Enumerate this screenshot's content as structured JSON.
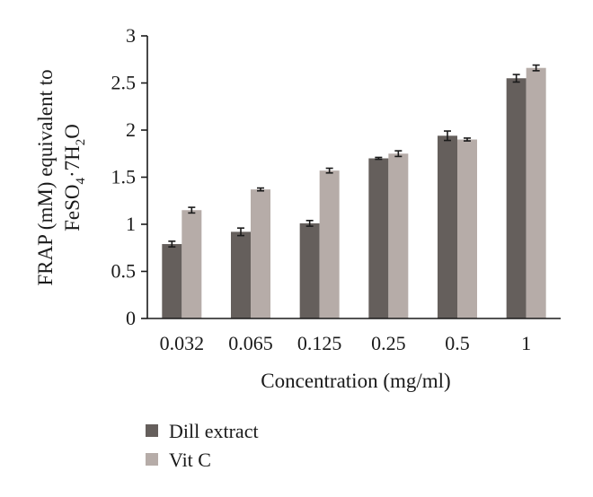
{
  "chart_data": {
    "type": "bar",
    "title": "",
    "xlabel": "Concentration (mg/ml)",
    "ylabel_line1": "FRAP (mM) equivalent to",
    "ylabel_line2": {
      "a": "FeSO",
      "sub1": "4",
      "b": "·7H",
      "sub2": "2",
      "c": "O"
    },
    "categories": [
      "0.032",
      "0.065",
      "0.125",
      "0.25",
      "0.5",
      "1"
    ],
    "ylim": [
      0,
      3
    ],
    "yticks": [
      0,
      0.5,
      1,
      1.5,
      2,
      2.5,
      3
    ],
    "ytick_labels": [
      "0",
      "0.5",
      "1",
      "1.5",
      "2",
      "2.5",
      "3"
    ],
    "grid": false,
    "legend_position": "bottom-left",
    "series": [
      {
        "name": "Dill extract",
        "color": "#655f5c",
        "values": [
          0.79,
          0.92,
          1.01,
          1.7,
          1.94,
          2.55
        ],
        "errors": [
          0.03,
          0.04,
          0.03,
          0.01,
          0.05,
          0.04
        ]
      },
      {
        "name": "Vit C",
        "color": "#b6aca8",
        "values": [
          1.15,
          1.37,
          1.57,
          1.75,
          1.9,
          2.66
        ],
        "errors": [
          0.03,
          0.015,
          0.025,
          0.03,
          0.015,
          0.03
        ]
      }
    ]
  }
}
